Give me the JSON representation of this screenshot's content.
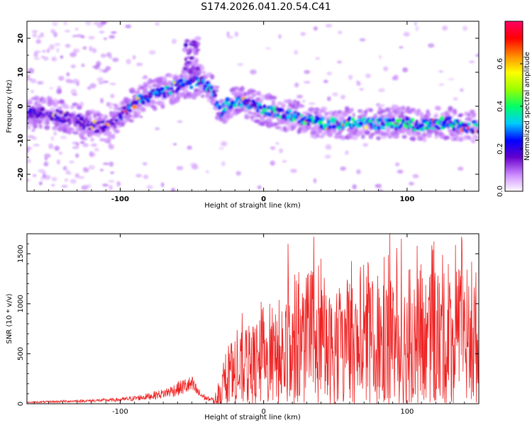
{
  "title": "S174.2026.041.20.54.C41",
  "chart_data": [
    {
      "type": "heatmap",
      "xlabel": "Height of straight line (km)",
      "ylabel": "Frequency (Hz)",
      "xlim": [
        -165,
        150
      ],
      "ylim": [
        -25,
        25
      ],
      "xticks": [
        -100,
        0,
        100
      ],
      "xtick_labels": [
        "-100",
        "0",
        "100"
      ],
      "yticks": [
        -20,
        -10,
        0,
        10,
        20
      ],
      "ytick_labels": [
        "-20",
        "-10",
        "0",
        "10",
        "20"
      ],
      "ridge": {
        "x": [
          -165,
          -150,
          -140,
          -130,
          -120,
          -110,
          -100,
          -90,
          -80,
          -70,
          -60,
          -55,
          -50,
          -45,
          -40,
          -35,
          -30,
          -25,
          -20,
          -10,
          0,
          10,
          20,
          30,
          40,
          50,
          60,
          70,
          80,
          90,
          100,
          110,
          120,
          130,
          140,
          150
        ],
        "y": [
          -2,
          -2,
          -3,
          -4,
          -6,
          -6,
          -3,
          1,
          3,
          4,
          6,
          7,
          7,
          8,
          6,
          4,
          -2,
          1,
          1,
          1,
          -1,
          -2,
          -3,
          -4,
          -5,
          -5,
          -5,
          -5,
          -5,
          -5,
          -5,
          -6,
          -5,
          -5,
          -6,
          -6
        ]
      },
      "colorbar": {
        "label": "Normalized spectral amplitude",
        "range": [
          0.0,
          0.8
        ],
        "ticks": [
          0.0,
          0.2,
          0.4,
          0.6
        ],
        "tick_labels": [
          "0.0",
          "0.2",
          "0.4",
          "0.6"
        ],
        "colors": [
          "#ffffff",
          "#cc88ff",
          "#6600cc",
          "#0000ff",
          "#00ccff",
          "#00ff66",
          "#99ff00",
          "#ffff00",
          "#ff8800",
          "#ff0000",
          "#ff0066"
        ]
      }
    },
    {
      "type": "line",
      "xlabel": "Height of straight line (km)",
      "ylabel": "SNR (10 * v/v)",
      "xlim": [
        -165,
        150
      ],
      "ylim": [
        0,
        1700
      ],
      "xticks": [
        -100,
        0,
        100
      ],
      "xtick_labels": [
        "-100",
        "0",
        "100"
      ],
      "yticks": [
        0,
        500,
        1000,
        1500
      ],
      "ytick_labels": [
        "0",
        "500",
        "1000",
        "1500"
      ],
      "color": "#ee2222",
      "envelope": {
        "x": [
          -165,
          -140,
          -120,
          -100,
          -90,
          -80,
          -70,
          -60,
          -55,
          -50,
          -45,
          -40,
          -35,
          -30,
          -25,
          -20,
          -15,
          -10,
          -5,
          0,
          5,
          10,
          15,
          20,
          30,
          40,
          50,
          60,
          70,
          80,
          90,
          100,
          110,
          120,
          130,
          140,
          150
        ],
        "y": [
          20,
          35,
          45,
          60,
          80,
          110,
          150,
          220,
          260,
          280,
          150,
          80,
          60,
          250,
          450,
          600,
          700,
          750,
          800,
          800,
          850,
          900,
          950,
          1000,
          1050,
          1100,
          1050,
          1100,
          1150,
          1200,
          1250,
          1250,
          1250,
          1250,
          1250,
          1300,
          1300
        ]
      },
      "peaks": [
        {
          "x": 17,
          "y": 1600
        },
        {
          "x": 35,
          "y": 1670
        },
        {
          "x": 40,
          "y": 1450
        },
        {
          "x": 88,
          "y": 1700
        },
        {
          "x": 96,
          "y": 1650
        },
        {
          "x": 138,
          "y": 1670
        },
        {
          "x": 73,
          "y": 1380
        },
        {
          "x": 145,
          "y": 1420
        },
        {
          "x": 24,
          "y": 1200
        },
        {
          "x": 118,
          "y": 1540
        },
        {
          "x": 60,
          "y": 1200
        }
      ]
    }
  ]
}
